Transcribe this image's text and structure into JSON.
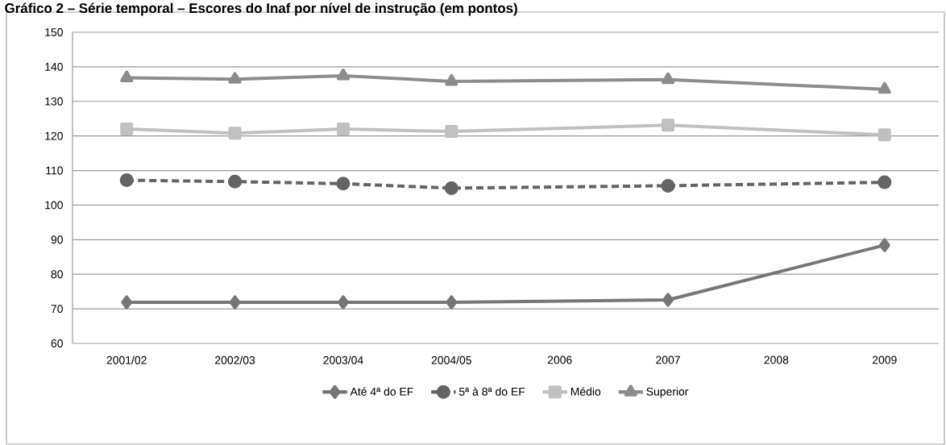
{
  "chart_data": {
    "type": "line",
    "title": "Gráfico 2 – Série temporal – Escores do Inaf por nível de instrução (em pontos)",
    "categories": [
      "2001/02",
      "2002/03",
      "2003/04",
      "2004/05",
      "2006",
      "2007",
      "2008",
      "2009"
    ],
    "series": [
      {
        "name": "Até 4ª do EF",
        "color": "#767676",
        "marker": "diamond",
        "line_style": "solid",
        "values": [
          71.9,
          71.9,
          71.9,
          71.9,
          null,
          72.6,
          null,
          88.4
        ]
      },
      {
        "name": "5ª à 8ª do EF",
        "color": "#646464",
        "marker": "circle",
        "line_style": "dashed",
        "values": [
          107.2,
          106.8,
          106.2,
          104.9,
          null,
          105.6,
          null,
          106.6
        ]
      },
      {
        "name": "Médio",
        "color": "#c0c0c0",
        "marker": "square",
        "line_style": "solid",
        "values": [
          122,
          120.8,
          122,
          121.3,
          null,
          123.1,
          null,
          120.3
        ]
      },
      {
        "name": "Superior",
        "color": "#8c8c8c",
        "marker": "triangle",
        "line_style": "solid",
        "values": [
          136.8,
          136.4,
          137.4,
          135.8,
          null,
          136.3,
          null,
          133.5
        ]
      }
    ],
    "ylim": [
      60,
      150
    ],
    "yticks": [
      60,
      70,
      80,
      90,
      100,
      110,
      120,
      130,
      140,
      150
    ],
    "grid": "y",
    "legend": "bottom"
  }
}
